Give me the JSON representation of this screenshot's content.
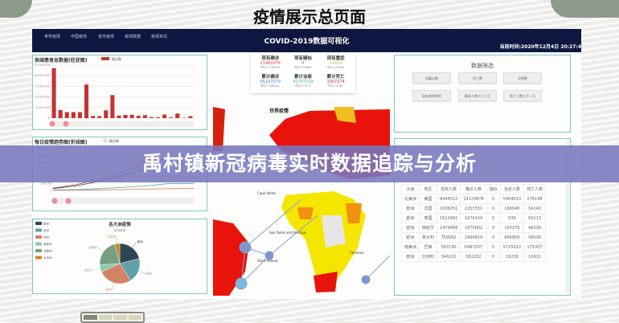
{
  "page_title": "疫情展示总页面",
  "banner": "禹村镇新冠病毒实时数据追踪与分析",
  "dashboard": {
    "nav": [
      "世界疫情",
      "中国疫情",
      "省市疫情",
      "疫情数据",
      "疫情资讯"
    ],
    "title": "COVID-2019数据可视化",
    "time": "当前时间:2020年12月4日 20:27:4"
  },
  "stats": [
    {
      "label": "现有确诊",
      "value": "21982076",
      "delta": "昨日+128539",
      "color": "#e8453c"
    },
    {
      "label": "现有疑似",
      "value": "4",
      "delta": "昨日+35685",
      "color": "#b8860b"
    },
    {
      "label": "现有重症",
      "value": "11633",
      "delta": "昨日+53289",
      "color": "#c9b53a"
    },
    {
      "label": "累计确诊",
      "value": "65197079",
      "delta": "昨日+168542",
      "color": "#3a8de8"
    },
    {
      "label": "累计治愈",
      "value": "41707729",
      "delta": "昨日-27971",
      "color": "#2cb36b"
    },
    {
      "label": "累计死亡",
      "value": "1507274",
      "delta": "昨日+2062",
      "color": "#b0202a"
    }
  ],
  "filter": {
    "title": "数据筛选",
    "buttons": [
      "总确诊数",
      "死亡数",
      "治愈数",
      "现存病例排序",
      "确诊人数大于十万",
      "死亡人数大于一万"
    ]
  },
  "table": {
    "headers": [
      "大洲",
      "地区",
      "现存人数",
      "确诊人数",
      "疑似",
      "治愈人数",
      "死亡人数"
    ],
    "rows": [
      [
        "北美洲",
        "美国",
        "8444512",
        "14124878",
        "0",
        "5404010",
        "276148"
      ],
      [
        "欧洲",
        "法国",
        "2036251",
        "2257331",
        "0",
        "166940",
        "54140"
      ],
      [
        "欧洲",
        "英国",
        "1613482",
        "1674134",
        "0",
        "539",
        "60113"
      ],
      [
        "欧洲",
        "西班牙",
        "1479488",
        "1675602",
        "0",
        "150376",
        "46038"
      ],
      [
        "欧洲",
        "意大利",
        "759982",
        "1664829",
        "0",
        "846809",
        "58038"
      ],
      [
        "南美洲",
        "巴西",
        "587190",
        "6487507",
        "0",
        "5725010",
        "175307"
      ],
      [
        "欧洲",
        "比利时",
        "546102",
        "582252",
        "0",
        "19239",
        "16911"
      ]
    ]
  },
  "map": {
    "title": "世界疫情",
    "labels": [
      "Cape Verde",
      "Saint Helena",
      "Comoros",
      "Sao Tome and Principe"
    ]
  },
  "chart_data": [
    {
      "type": "bar",
      "title": "各国患者总数据(柱状图)",
      "legend": [
        "确诊数"
      ],
      "color": "#c23531",
      "ylim": [
        0,
        15000000
      ],
      "yticks": [
        "0",
        "3,000,000",
        "6,000,000",
        "9,000,000",
        "12,000,000",
        "15,000,000"
      ],
      "values": [
        14100000,
        2300000,
        1700000,
        1700000,
        1700000,
        9500000,
        600000,
        550000,
        2200000,
        6500000,
        700000,
        900000,
        950000,
        650000,
        850000,
        300000,
        250000,
        1000000,
        200000,
        1300000,
        100000,
        550000
      ]
    },
    {
      "type": "line",
      "title": "每日疫情趋势图(折线图)",
      "legend": [
        "确诊数"
      ],
      "ylim": [
        0,
        1800000
      ],
      "yticks": [
        "0",
        "300,000",
        "600,000",
        "900,000",
        "1,200,000",
        "1,500,000",
        "1,800,000"
      ],
      "series": [
        {
          "color": "#c23531",
          "values": [
            100000,
            250000,
            500000,
            800000,
            1200000,
            1400000,
            1450000
          ]
        },
        {
          "color": "#2f4554",
          "values": [
            80000,
            200000,
            400000,
            650000,
            950000,
            1100000,
            1120000
          ]
        },
        {
          "color": "#61a0a8",
          "values": [
            20000,
            40000,
            80000,
            130000,
            200000,
            300000,
            300000
          ]
        },
        {
          "color": "#d48265",
          "values": [
            5000,
            10000,
            20000,
            40000,
            60000,
            80000,
            90000
          ]
        }
      ]
    },
    {
      "type": "pie",
      "title": "各大洲疫情",
      "subtitle": "疫情数据",
      "categories": [
        "欧洲",
        "亚洲",
        "非洲",
        "南美洲",
        "北美洲",
        "大洋洲"
      ],
      "values": [
        21,
        20,
        27,
        6,
        22,
        4
      ],
      "colors": [
        "#2f4554",
        "#61a0a8",
        "#d48265",
        "#91c7ae",
        "#749f83",
        "#ca8622"
      ]
    }
  ]
}
